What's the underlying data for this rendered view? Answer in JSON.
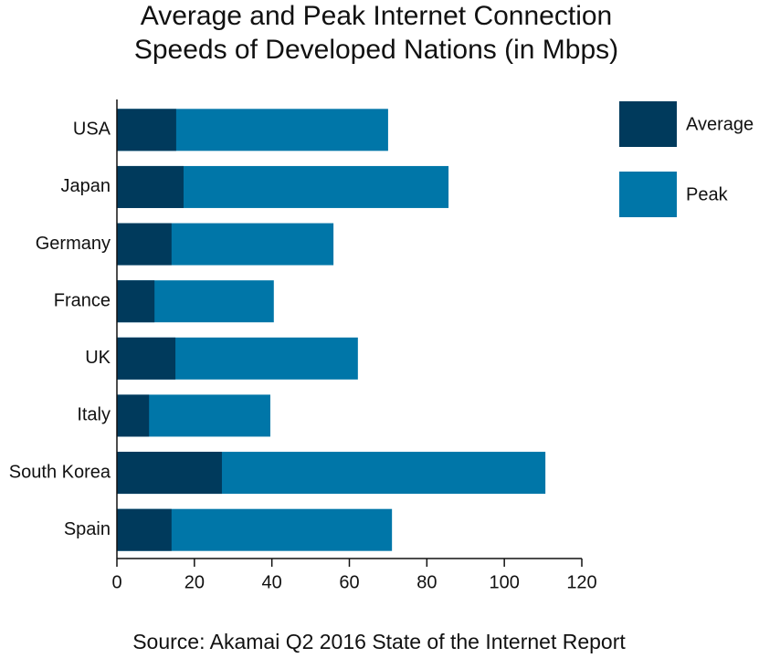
{
  "chart_data": {
    "type": "bar",
    "orientation": "horizontal",
    "title": [
      "Average and Peak Internet Connection",
      "Speeds of Developed Nations (in Mbps)"
    ],
    "source": "Source: Akamai Q2 2016 State of the Internet Report",
    "categories": [
      "USA",
      "Japan",
      "Germany",
      "France",
      "UK",
      "Italy",
      "South Korea",
      "Spain"
    ],
    "series": [
      {
        "name": "Peak",
        "color": "#0076a8",
        "values": [
          70.0,
          85.6,
          55.9,
          40.5,
          62.2,
          39.6,
          110.6,
          71.0
        ]
      },
      {
        "name": "Average",
        "color": "#003a5c",
        "values": [
          15.3,
          17.2,
          14.1,
          9.7,
          15.1,
          8.3,
          27.1,
          14.1
        ]
      }
    ],
    "legend_order": [
      1,
      0
    ],
    "xlim": [
      0,
      120
    ],
    "xticks": [
      0,
      20,
      40,
      60,
      80,
      100,
      120
    ],
    "grid": false,
    "legend": "right"
  }
}
